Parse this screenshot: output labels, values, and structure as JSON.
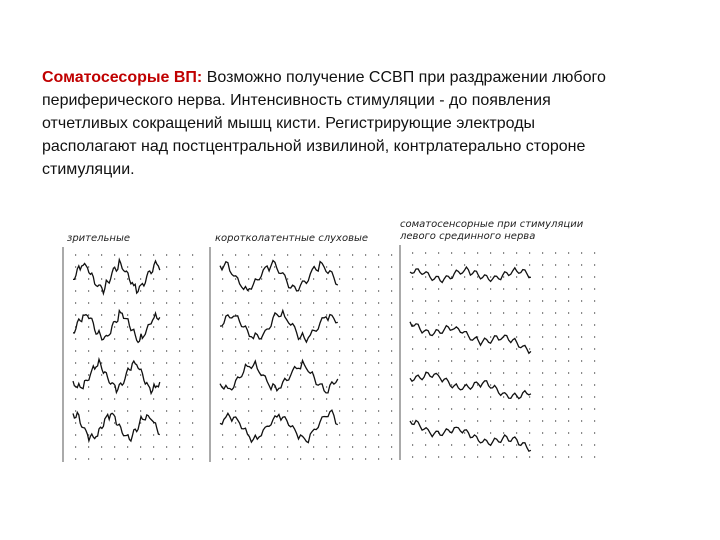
{
  "slide": {
    "heading": "Соматосесорые ВП:",
    "body": "Возможно получение ССВП при раздражении любого периферического нерва. Интенсивность стимуляции - до появления отчетливых сокращений мышц кисти. Регистрирующие электроды располагают над постцентральной извилиной, контрлатерально стороне стимуляции.",
    "figure": {
      "panels": [
        {
          "label": "зрительные"
        },
        {
          "label": "коротколатентные слуховые"
        },
        {
          "label": "соматосенсорные при стимуляции левого срединного нерва"
        }
      ]
    }
  }
}
